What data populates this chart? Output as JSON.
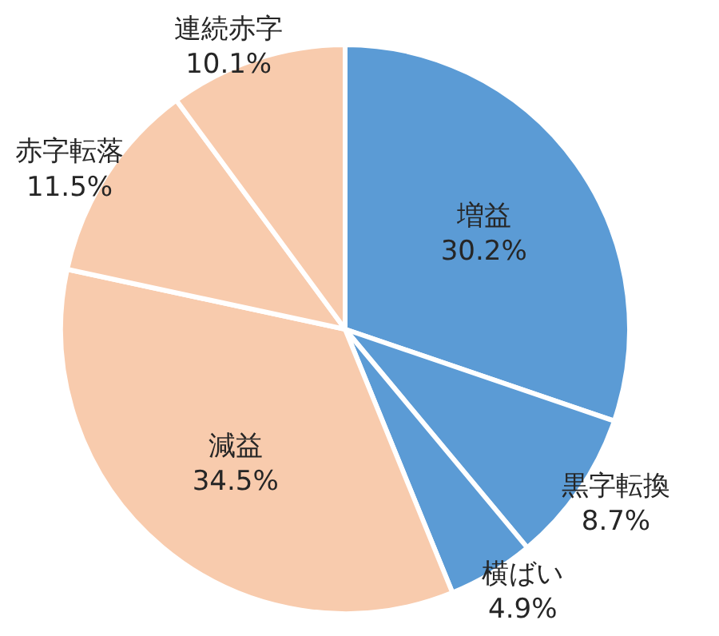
{
  "chart_data": {
    "type": "pie",
    "categories": [
      "増益",
      "黒字転換",
      "横ばい",
      "減益",
      "赤字転落",
      "連続赤字"
    ],
    "values": [
      30.2,
      8.7,
      4.9,
      34.5,
      11.5,
      10.1
    ],
    "colors": [
      "#5b9bd5",
      "#5b9bd5",
      "#5b9bd5",
      "#f8cbad",
      "#f8cbad",
      "#f8cbad"
    ],
    "value_labels": [
      "30.2%",
      "8.7%",
      "4.9%",
      "34.5%",
      "11.5%",
      "10.1%"
    ]
  }
}
